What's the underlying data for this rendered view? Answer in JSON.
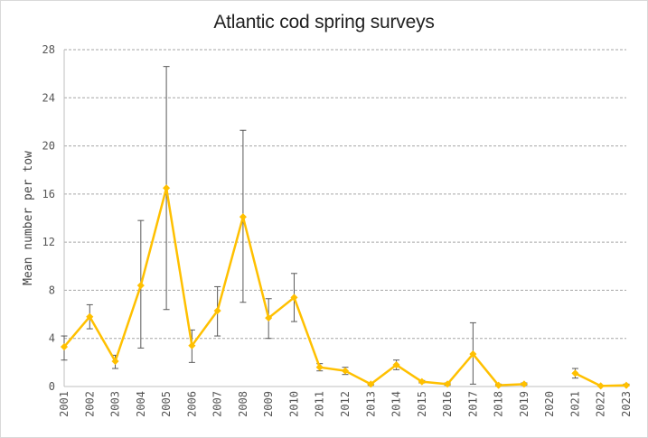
{
  "chart_data": {
    "type": "line",
    "title": "Atlantic cod spring surveys",
    "ylabel": "Mean number per tow",
    "xlabel": "",
    "ylim": [
      0,
      28
    ],
    "yticks": [
      0,
      4,
      8,
      12,
      16,
      20,
      24,
      28
    ],
    "grid": "horizontal dashed",
    "legend": "none",
    "colors": {
      "line": "#FFC000",
      "error_bar": "#595959",
      "grid": "#a6a6a6",
      "axis": "#bfbfbf"
    },
    "categories": [
      "2001",
      "2002",
      "2003",
      "2004",
      "2005",
      "2006",
      "2007",
      "2008",
      "2009",
      "2010",
      "2011",
      "2012",
      "2013",
      "2014",
      "2015",
      "2016",
      "2017",
      "2018",
      "2019",
      "2020",
      "2021",
      "2022",
      "2023"
    ],
    "series": [
      {
        "values": [
          3.3,
          5.8,
          2.1,
          8.4,
          16.5,
          3.4,
          6.3,
          14.1,
          5.7,
          7.4,
          1.6,
          1.3,
          0.2,
          1.8,
          0.4,
          0.2,
          2.7,
          0.1,
          0.2,
          null,
          1.1,
          0.05,
          0.1
        ],
        "lower": [
          2.2,
          4.8,
          1.5,
          3.2,
          6.4,
          2.0,
          4.2,
          7.0,
          4.0,
          5.4,
          1.3,
          1.0,
          0.1,
          1.4,
          0.3,
          0.1,
          0.2,
          0.05,
          0.1,
          null,
          0.7,
          0.02,
          0.05
        ],
        "upper": [
          4.2,
          6.8,
          2.6,
          13.8,
          26.6,
          4.7,
          8.3,
          21.3,
          7.3,
          9.4,
          1.9,
          1.6,
          0.3,
          2.2,
          0.5,
          0.3,
          5.3,
          0.2,
          0.3,
          null,
          1.5,
          0.1,
          0.2
        ]
      }
    ]
  }
}
